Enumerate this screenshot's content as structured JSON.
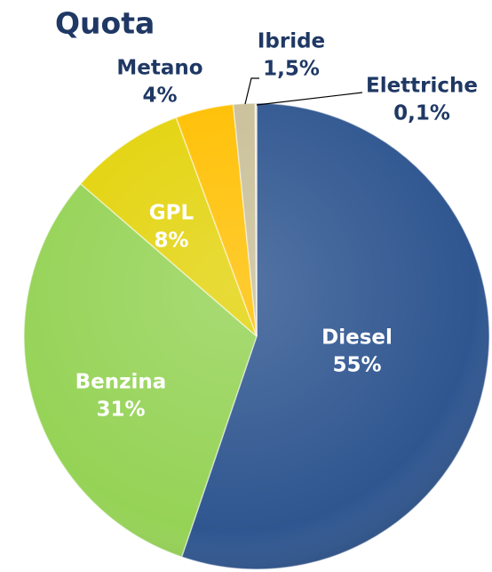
{
  "chart_data": {
    "type": "pie",
    "title": "Quota",
    "categories": [
      "Diesel",
      "Benzina",
      "GPL",
      "Metano",
      "Ibride",
      "Elettriche"
    ],
    "values": [
      55,
      31,
      8,
      4,
      1.5,
      0.1
    ],
    "value_labels": [
      "55%",
      "31%",
      "8%",
      "4%",
      "1,5%",
      "0,1%"
    ],
    "colors": [
      "#2f5690",
      "#95d356",
      "#e3d30c",
      "#ffbf00",
      "#c9bf98",
      "#e2dcc6"
    ]
  }
}
